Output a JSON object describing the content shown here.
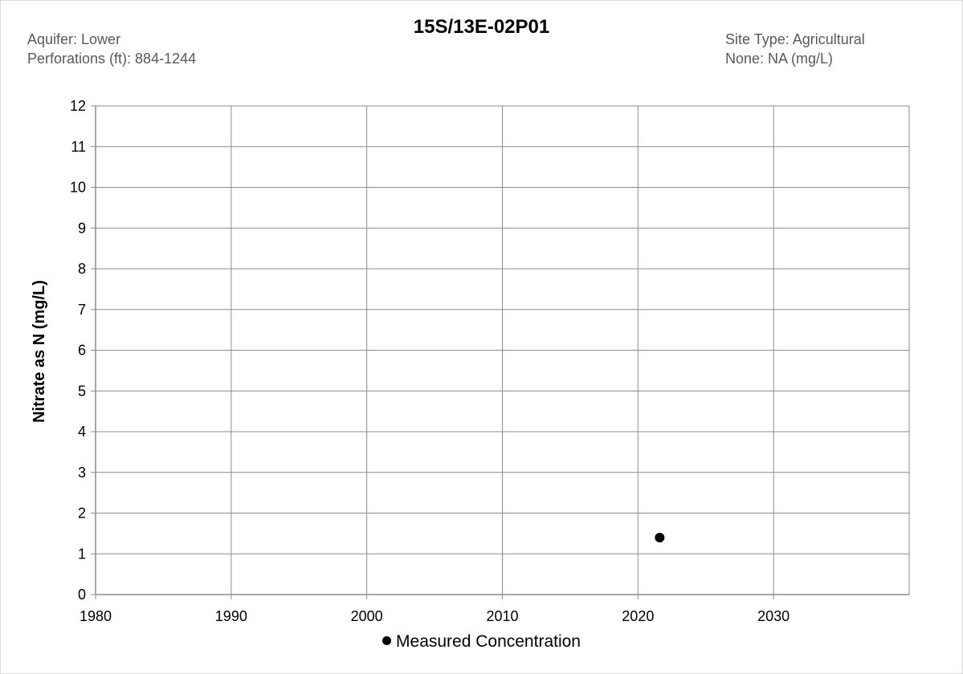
{
  "header": {
    "title": "15S/13E-02P01",
    "left_line1": "Aquifer: Lower",
    "left_line2": "Perforations (ft): 884-1244",
    "right_line1": "Site Type: Agricultural",
    "right_line2": "None: NA (mg/L)"
  },
  "chart_data": {
    "type": "scatter",
    "title": "15S/13E-02P01",
    "xlabel": "",
    "ylabel": "Nitrate as N (mg/L)",
    "xlim": [
      1980,
      2040
    ],
    "ylim": [
      0,
      12
    ],
    "x_ticks": [
      1980,
      1990,
      2000,
      2010,
      2020,
      2030
    ],
    "y_ticks": [
      0,
      1,
      2,
      3,
      4,
      5,
      6,
      7,
      8,
      9,
      10,
      11,
      12
    ],
    "grid": true,
    "legend_position": "bottom",
    "series": [
      {
        "name": "Measured Concentration",
        "color": "#000000",
        "points": [
          {
            "x": 2021.6,
            "y": 1.4
          }
        ]
      }
    ]
  },
  "legend": {
    "label": "Measured Concentration"
  }
}
